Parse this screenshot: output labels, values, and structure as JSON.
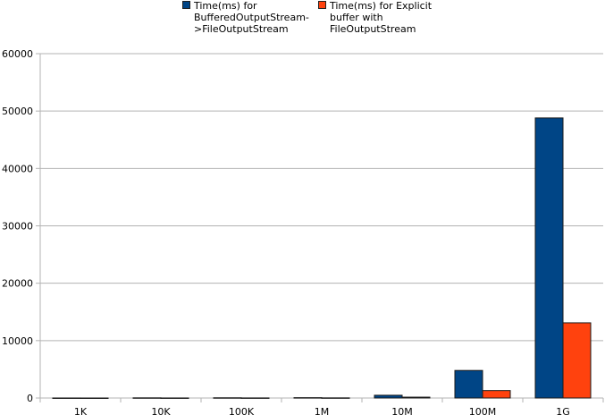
{
  "chart_data": {
    "type": "bar",
    "categories": [
      "1K",
      "10K",
      "100K",
      "1M",
      "10M",
      "100M",
      "1G"
    ],
    "series": [
      {
        "name": "Time(ms) for BufferedOutputStream->FileOutputStream",
        "legend_lines": [
          "Time(ms) for",
          "BufferedOutputStream-",
          ">FileOutputStream"
        ],
        "color": "#004586",
        "values": [
          5,
          30,
          40,
          60,
          480,
          4800,
          48800
        ]
      },
      {
        "name": "Time(ms) for Explicit buffer with FileOutputStream",
        "legend_lines": [
          "Time(ms) for Explicit",
          "buffer with",
          "FileOutputStream"
        ],
        "color": "#ff420e",
        "values": [
          2,
          10,
          15,
          25,
          150,
          1300,
          13100
        ]
      }
    ],
    "ylim": [
      0,
      60000
    ],
    "yticks": [
      0,
      10000,
      20000,
      30000,
      40000,
      50000,
      60000
    ],
    "grid": true,
    "legend_position": "top",
    "title": "",
    "xlabel": "",
    "ylabel": ""
  }
}
